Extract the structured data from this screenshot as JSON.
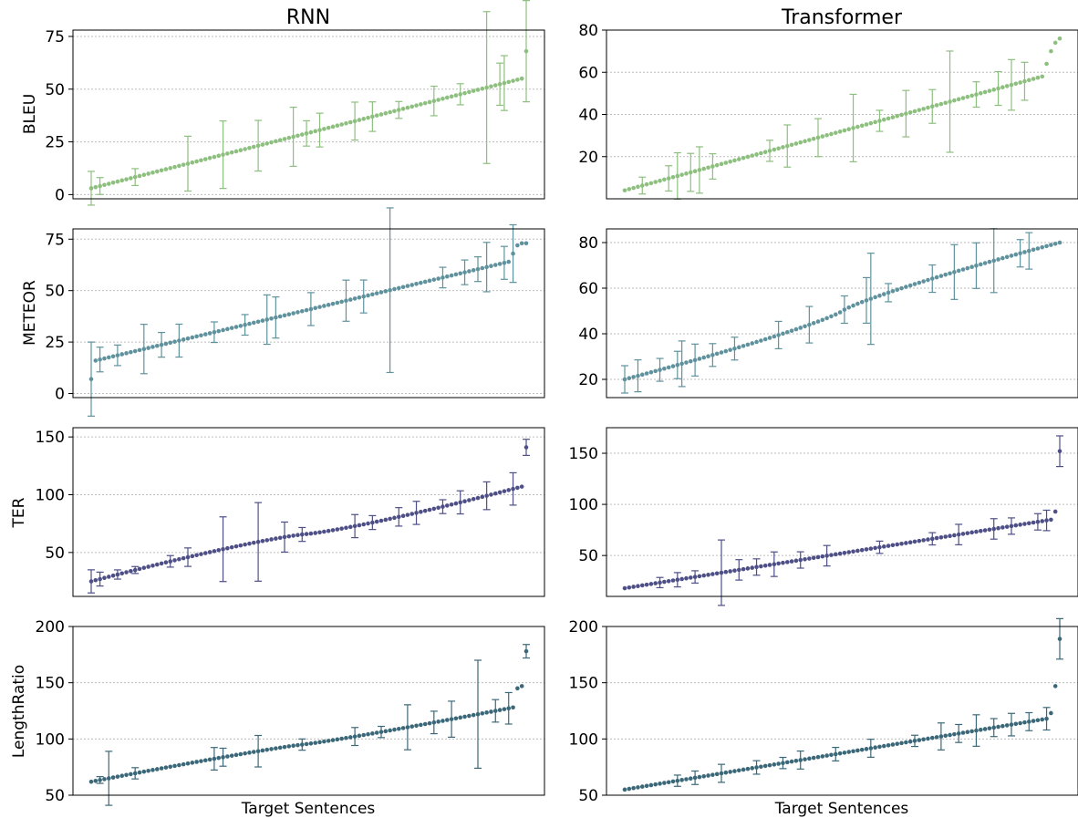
{
  "figure": {
    "column_titles": [
      "RNN",
      "Transformer"
    ],
    "x_label": "Target Sentences",
    "metrics": [
      "BLEU",
      "METEOR",
      "TER",
      "LengthRatio"
    ],
    "colors": {
      "BLEU": "#8dbf7e",
      "METEOR": "#5f929d",
      "TER": "#4e4f86",
      "LengthRatio": "#3b6878"
    },
    "points_per_panel": 100,
    "grid": "horizontal dotted",
    "legend": "none"
  },
  "chart_data": [
    {
      "type": "scatter",
      "metric": "BLEU",
      "model": "RNN",
      "ylim": [
        -2,
        78
      ],
      "yticks": [
        0,
        25,
        50,
        75
      ],
      "range": [
        3,
        55
      ],
      "curve": 1.0,
      "top": [
        68
      ],
      "errors": [
        [
          0,
          8
        ],
        [
          2,
          4
        ],
        [
          10,
          4
        ],
        [
          22,
          13
        ],
        [
          30,
          16
        ],
        [
          38,
          12
        ],
        [
          46,
          14
        ],
        [
          49,
          6
        ],
        [
          52,
          8
        ],
        [
          60,
          9
        ],
        [
          64,
          7
        ],
        [
          70,
          4
        ],
        [
          78,
          7
        ],
        [
          84,
          5
        ],
        [
          90,
          36
        ],
        [
          93,
          10
        ],
        [
          94,
          13
        ],
        [
          99,
          24
        ]
      ]
    },
    {
      "type": "scatter",
      "metric": "BLEU",
      "model": "Transformer",
      "ylim": [
        0,
        80
      ],
      "yticks": [
        20,
        40,
        60,
        80
      ],
      "range": [
        4,
        58
      ],
      "curve": 1.0,
      "top": [
        64,
        70,
        74,
        76
      ],
      "errors": [
        [
          4,
          4
        ],
        [
          10,
          6
        ],
        [
          12,
          11
        ],
        [
          15,
          9
        ],
        [
          17,
          11
        ],
        [
          20,
          6
        ],
        [
          33,
          5
        ],
        [
          37,
          10
        ],
        [
          44,
          9
        ],
        [
          52,
          16
        ],
        [
          58,
          5
        ],
        [
          64,
          11
        ],
        [
          70,
          8
        ],
        [
          74,
          24
        ],
        [
          80,
          6
        ],
        [
          85,
          8
        ],
        [
          88,
          12
        ],
        [
          91,
          9
        ]
      ]
    },
    {
      "type": "scatter",
      "metric": "METEOR",
      "model": "RNN",
      "ylim": [
        -2,
        80
      ],
      "yticks": [
        0,
        25,
        50,
        75
      ],
      "range": [
        16,
        64
      ],
      "curve": 1.0,
      "bottom": [
        7
      ],
      "top": [
        68,
        72,
        73,
        73
      ],
      "errors": [
        [
          0,
          18
        ],
        [
          2,
          6
        ],
        [
          6,
          5
        ],
        [
          12,
          12
        ],
        [
          16,
          6
        ],
        [
          20,
          8
        ],
        [
          28,
          5
        ],
        [
          35,
          5
        ],
        [
          40,
          12
        ],
        [
          42,
          10
        ],
        [
          50,
          8
        ],
        [
          58,
          10
        ],
        [
          62,
          8
        ],
        [
          68,
          40
        ],
        [
          80,
          5
        ],
        [
          85,
          6
        ],
        [
          88,
          6
        ],
        [
          90,
          12
        ],
        [
          94,
          8
        ],
        [
          96,
          14
        ]
      ]
    },
    {
      "type": "scatter",
      "metric": "METEOR",
      "model": "Transformer",
      "ylim": [
        12,
        86
      ],
      "yticks": [
        20,
        40,
        60,
        80
      ],
      "range": [
        20,
        80
      ],
      "curve": 0.85,
      "errors": [
        [
          0,
          6
        ],
        [
          3,
          7
        ],
        [
          8,
          5
        ],
        [
          12,
          6
        ],
        [
          13,
          10
        ],
        [
          16,
          7
        ],
        [
          20,
          5
        ],
        [
          25,
          5
        ],
        [
          35,
          6
        ],
        [
          42,
          8
        ],
        [
          50,
          6
        ],
        [
          55,
          10
        ],
        [
          56,
          20
        ],
        [
          60,
          4
        ],
        [
          70,
          6
        ],
        [
          75,
          12
        ],
        [
          80,
          10
        ],
        [
          84,
          14
        ],
        [
          90,
          6
        ],
        [
          92,
          8
        ]
      ]
    },
    {
      "type": "scatter",
      "metric": "TER",
      "model": "RNN",
      "ylim": [
        12,
        158
      ],
      "yticks": [
        50,
        100,
        150
      ],
      "range": [
        25,
        107
      ],
      "curve": 1.2,
      "top": [
        141
      ],
      "errors": [
        [
          0,
          10
        ],
        [
          2,
          6
        ],
        [
          6,
          4
        ],
        [
          10,
          3
        ],
        [
          18,
          5
        ],
        [
          22,
          8
        ],
        [
          30,
          28
        ],
        [
          38,
          34
        ],
        [
          44,
          13
        ],
        [
          48,
          6
        ],
        [
          60,
          10
        ],
        [
          64,
          6
        ],
        [
          70,
          8
        ],
        [
          74,
          10
        ],
        [
          80,
          6
        ],
        [
          84,
          10
        ],
        [
          90,
          12
        ],
        [
          96,
          14
        ],
        [
          99,
          7
        ]
      ]
    },
    {
      "type": "scatter",
      "metric": "TER",
      "model": "Transformer",
      "ylim": [
        10,
        175
      ],
      "yticks": [
        50,
        100,
        150
      ],
      "range": [
        18,
        85
      ],
      "curve": 1.0,
      "top": [
        93,
        152
      ],
      "errors": [
        [
          8,
          5
        ],
        [
          12,
          7
        ],
        [
          16,
          6
        ],
        [
          22,
          32
        ],
        [
          26,
          10
        ],
        [
          30,
          8
        ],
        [
          34,
          12
        ],
        [
          40,
          8
        ],
        [
          46,
          10
        ],
        [
          58,
          6
        ],
        [
          70,
          6
        ],
        [
          76,
          10
        ],
        [
          84,
          10
        ],
        [
          88,
          8
        ],
        [
          94,
          8
        ],
        [
          96,
          10
        ],
        [
          99,
          15
        ]
      ]
    },
    {
      "type": "scatter",
      "metric": "LengthRatio",
      "model": "RNN",
      "ylim": [
        50,
        200
      ],
      "yticks": [
        50,
        100,
        150,
        200
      ],
      "range": [
        62,
        128
      ],
      "curve": 1.1,
      "top": [
        145,
        147,
        178
      ],
      "errors": [
        [
          2,
          3
        ],
        [
          4,
          24
        ],
        [
          10,
          5
        ],
        [
          28,
          10
        ],
        [
          30,
          8
        ],
        [
          38,
          14
        ],
        [
          48,
          5
        ],
        [
          60,
          8
        ],
        [
          66,
          5
        ],
        [
          72,
          20
        ],
        [
          78,
          10
        ],
        [
          82,
          16
        ],
        [
          88,
          48
        ],
        [
          92,
          10
        ],
        [
          95,
          14
        ],
        [
          99,
          6
        ]
      ]
    },
    {
      "type": "scatter",
      "metric": "LengthRatio",
      "model": "Transformer",
      "ylim": [
        50,
        200
      ],
      "yticks": [
        50,
        100,
        150,
        200
      ],
      "range": [
        55,
        118
      ],
      "curve": 1.0,
      "top": [
        123,
        147,
        189
      ],
      "errors": [
        [
          12,
          5
        ],
        [
          16,
          6
        ],
        [
          22,
          8
        ],
        [
          30,
          6
        ],
        [
          36,
          5
        ],
        [
          40,
          8
        ],
        [
          48,
          6
        ],
        [
          56,
          8
        ],
        [
          66,
          5
        ],
        [
          72,
          12
        ],
        [
          76,
          8
        ],
        [
          80,
          14
        ],
        [
          84,
          8
        ],
        [
          88,
          10
        ],
        [
          92,
          8
        ],
        [
          96,
          10
        ],
        [
          99,
          18
        ]
      ]
    }
  ]
}
